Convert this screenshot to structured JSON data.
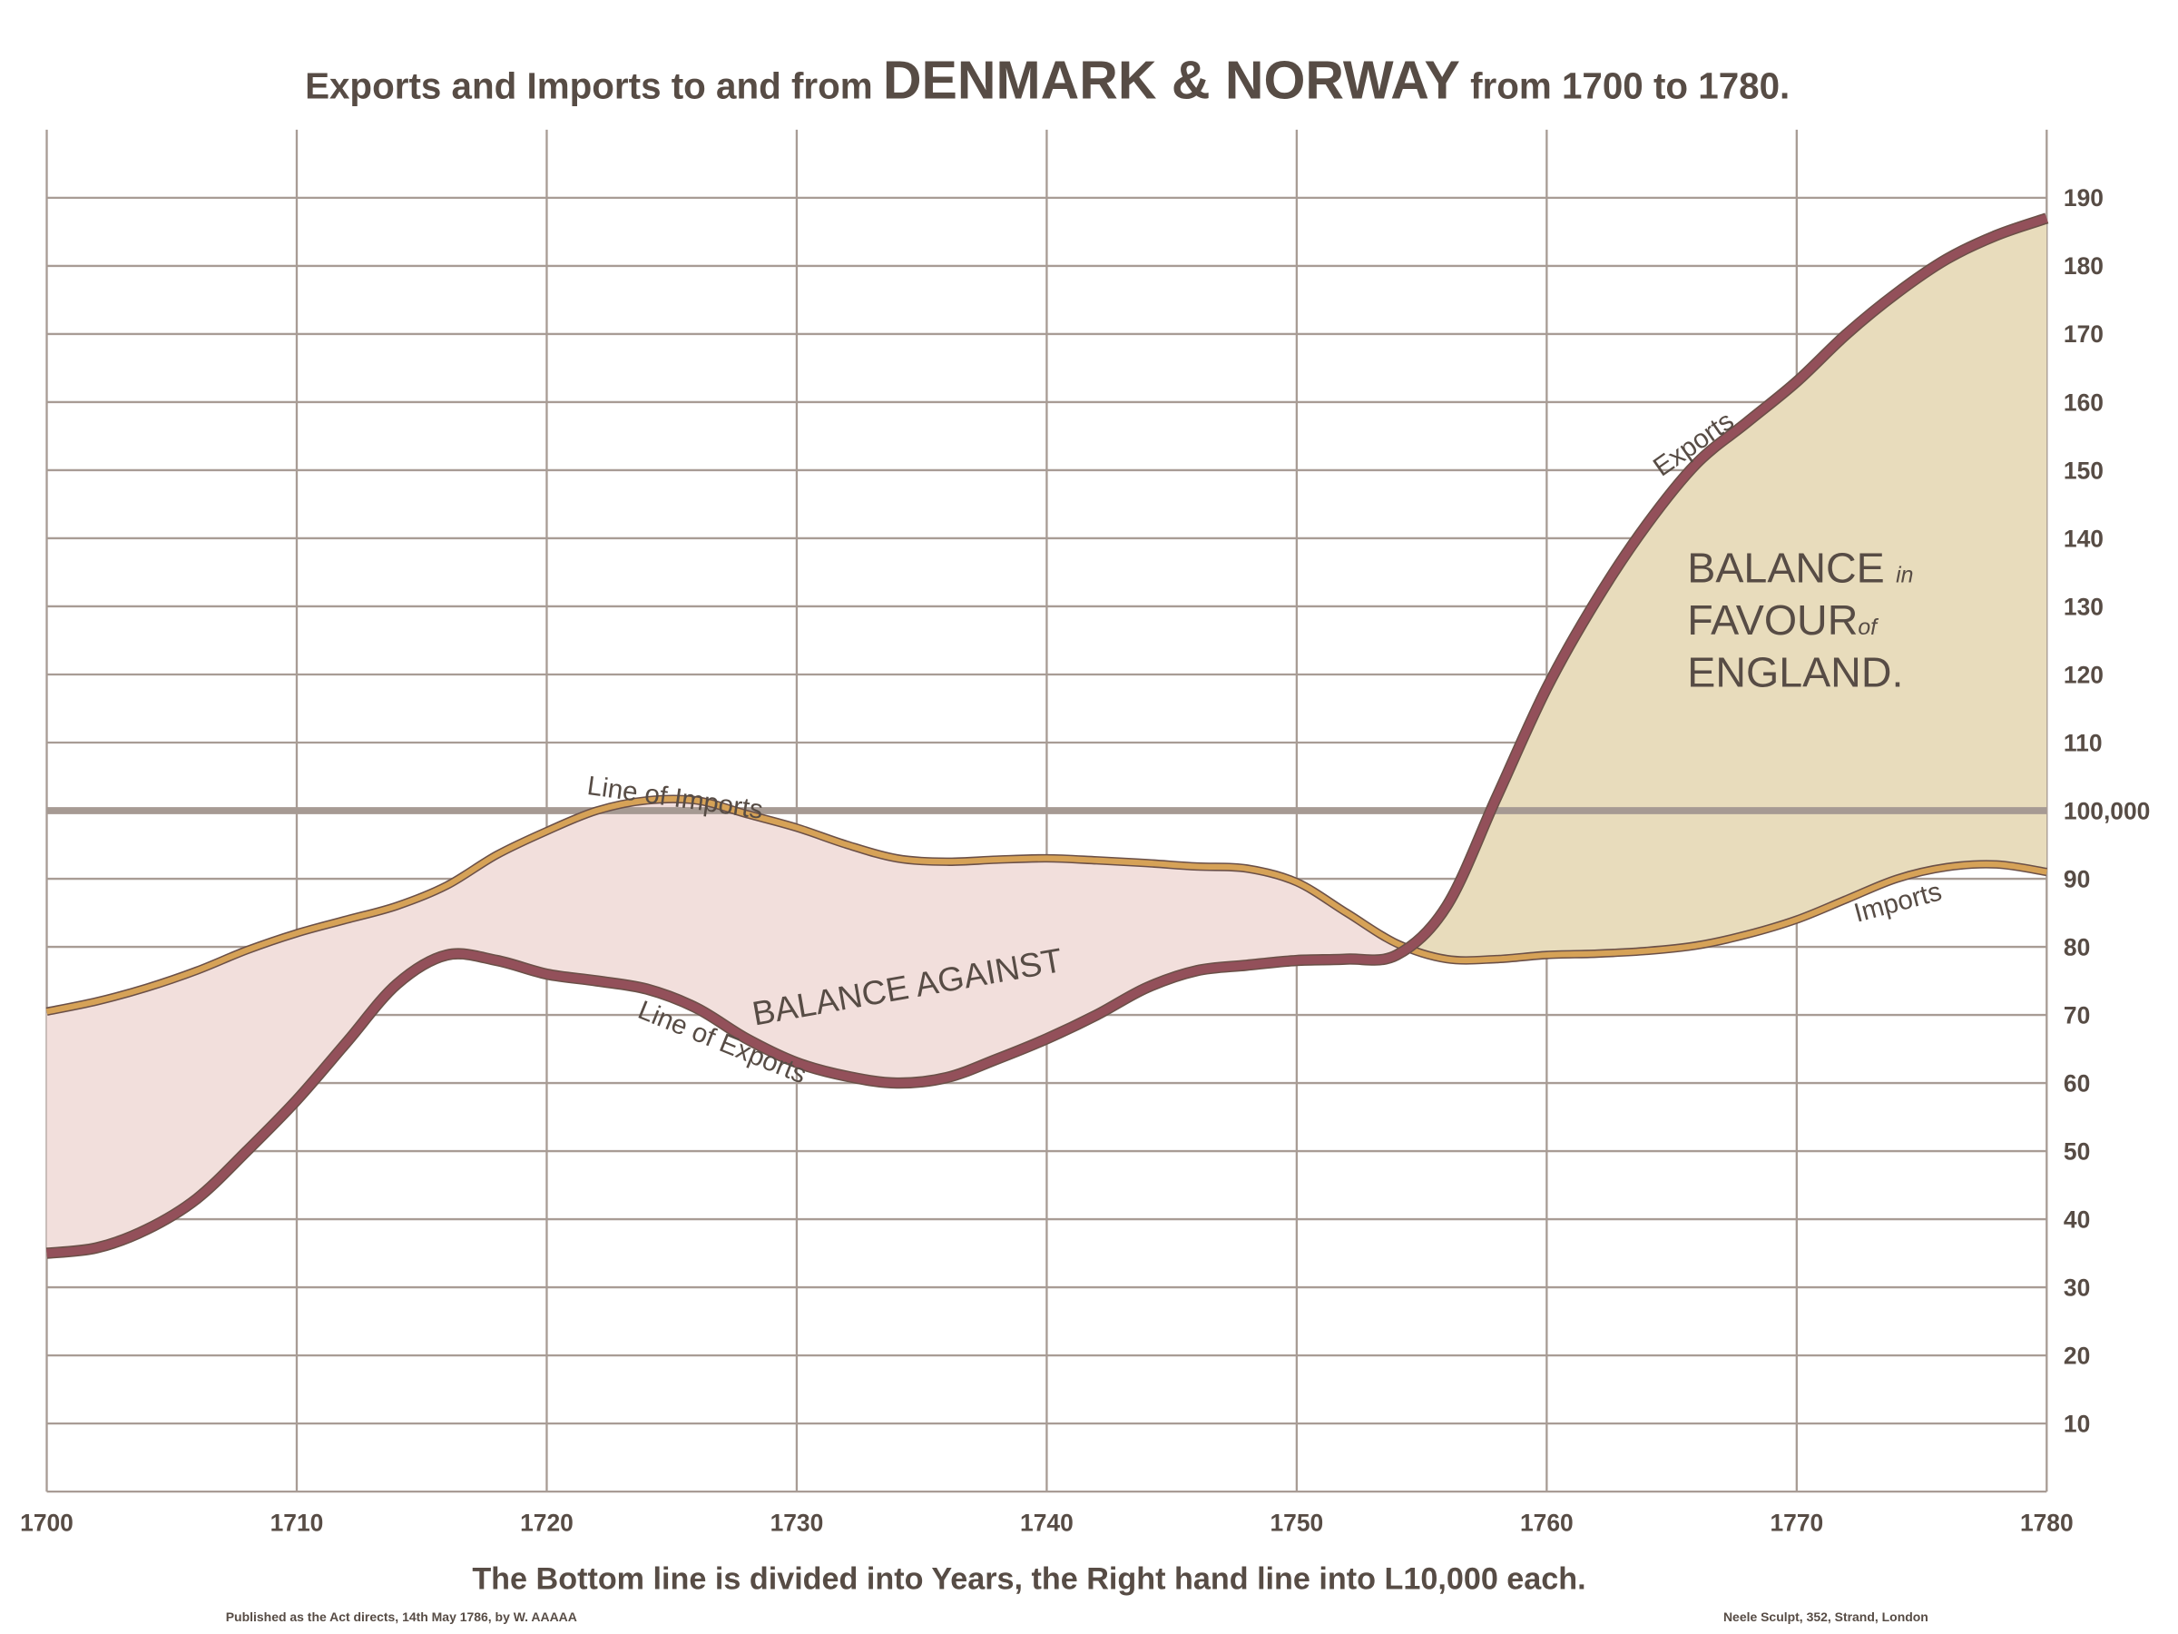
{
  "chart_data": {
    "type": "line",
    "title": [
      "Exports and Imports to and from ",
      "DENMARK & NORWAY",
      " from 1700 to 1780."
    ],
    "xlabel": "The Bottom line is divided into Years, the Right hand line into L10,000 each.",
    "footnote_left": "Published as the Act directs, 14th May 1786, by W. AAAAA",
    "footnote_right": "Neele Sculpt, 352, Strand, London",
    "x": [
      1700,
      1702,
      1704,
      1706,
      1708,
      1710,
      1712,
      1714,
      1716,
      1718,
      1720,
      1722,
      1724,
      1726,
      1728,
      1730,
      1732,
      1734,
      1736,
      1738,
      1740,
      1742,
      1744,
      1746,
      1748,
      1750,
      1752,
      1754,
      1756,
      1758,
      1760,
      1762,
      1764,
      1766,
      1768,
      1770,
      1772,
      1774,
      1776,
      1778,
      1780
    ],
    "series": [
      {
        "name": "Exports",
        "color": "#93505a",
        "values": [
          35,
          35.8,
          38.5,
          43,
          50,
          57.5,
          66,
          74.5,
          78.8,
          78,
          76,
          75,
          73.8,
          71,
          66.5,
          63,
          61,
          60,
          60.8,
          63.5,
          66.5,
          70,
          74,
          76.5,
          77.3,
          78,
          78.2,
          78.8,
          86,
          102,
          118,
          131,
          142,
          151,
          157,
          163,
          170,
          176,
          181,
          184.5,
          187
        ]
      },
      {
        "name": "Imports",
        "color": "#d6a257",
        "values": [
          70.5,
          72,
          74,
          76.5,
          79.5,
          82,
          84,
          86,
          89,
          93.5,
          97,
          100,
          101.5,
          101.5,
          99.5,
          97.5,
          95,
          93,
          92.5,
          92.8,
          93,
          92.7,
          92.3,
          91.8,
          91.5,
          89.5,
          85,
          80.5,
          78.2,
          78.2,
          78.8,
          79,
          79.4,
          80.2,
          81.8,
          84,
          87,
          90,
          91.7,
          92.1,
          91
        ]
      }
    ],
    "fills": {
      "against": "#f2dfdc",
      "favour": "#e8dcbc"
    },
    "annotations": {
      "imports_line": "Line of Imports",
      "balance_against": "BALANCE AGAINST",
      "exports_line": "Line of Exports",
      "exports": "Exports",
      "imports": "Imports",
      "balance_favour": [
        "BALANCE",
        "in",
        "FAVOUR",
        "of",
        "ENGLAND."
      ]
    },
    "xlim": [
      1700,
      1780
    ],
    "xticks": [
      1700,
      1710,
      1720,
      1730,
      1740,
      1750,
      1760,
      1770,
      1780
    ],
    "ylim": [
      0,
      200
    ],
    "yticks": [
      10,
      20,
      30,
      40,
      50,
      60,
      70,
      80,
      90,
      {
        "value": 100,
        "label": "100,000"
      },
      110,
      120,
      130,
      140,
      150,
      160,
      170,
      180,
      190
    ],
    "reference_line": 100,
    "grid": true
  }
}
